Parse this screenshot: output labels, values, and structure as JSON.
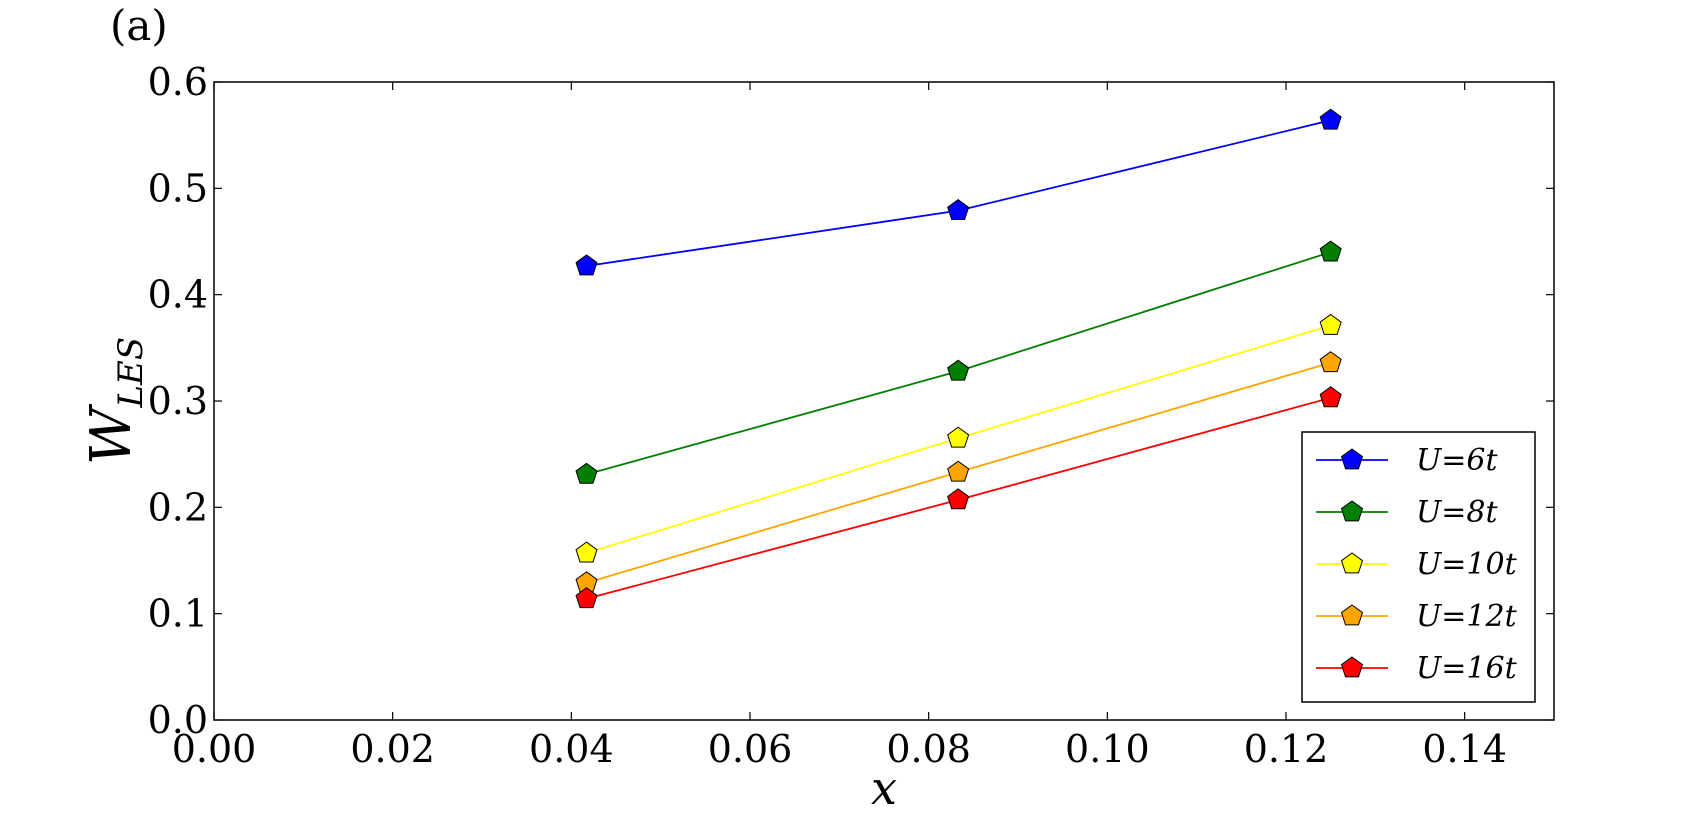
{
  "panel_label": "(a)",
  "chart_data": {
    "type": "line",
    "xlabel": "x",
    "ylabel_main": "W",
    "ylabel_sub": "LES",
    "xlim": [
      0.0,
      0.15
    ],
    "ylim": [
      0.0,
      0.6
    ],
    "xticks": [
      0.0,
      0.02,
      0.04,
      0.06,
      0.08,
      0.1,
      0.12,
      0.14
    ],
    "xtick_labels": [
      "0.00",
      "0.02",
      "0.04",
      "0.06",
      "0.08",
      "0.10",
      "0.12",
      "0.14"
    ],
    "yticks": [
      0.0,
      0.1,
      0.2,
      0.3,
      0.4,
      0.5,
      0.6
    ],
    "ytick_labels": [
      "0.0",
      "0.1",
      "0.2",
      "0.3",
      "0.4",
      "0.5",
      "0.6"
    ],
    "grid": false,
    "legend_position": "lower-right",
    "marker": "pentagon",
    "x": [
      0.0417,
      0.0833,
      0.125
    ],
    "series": [
      {
        "name": "U=6t",
        "color": "#0000ff",
        "values": [
          0.427,
          0.479,
          0.564
        ]
      },
      {
        "name": "U=8t",
        "color": "#007f00",
        "values": [
          0.231,
          0.328,
          0.44
        ]
      },
      {
        "name": "U=10t",
        "color": "#ffff00",
        "values": [
          0.157,
          0.265,
          0.371
        ]
      },
      {
        "name": "U=12t",
        "color": "#ffa500",
        "values": [
          0.129,
          0.233,
          0.336
        ]
      },
      {
        "name": "U=16t",
        "color": "#ff0000",
        "values": [
          0.114,
          0.207,
          0.303
        ]
      }
    ]
  }
}
